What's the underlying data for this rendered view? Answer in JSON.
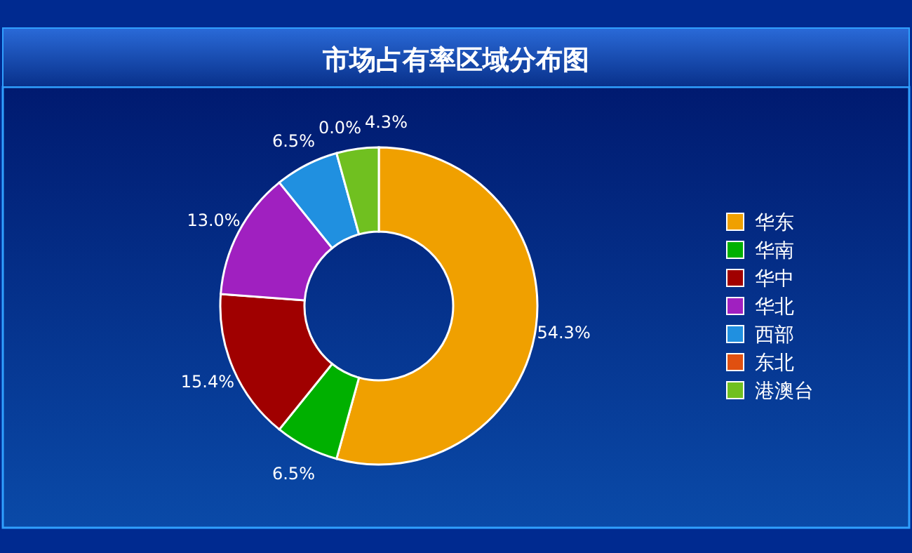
{
  "chart_data": {
    "type": "donut",
    "title": "市场占有率区域分布图",
    "categories": [
      "华东",
      "华南",
      "华中",
      "华北",
      "西部",
      "东北",
      "港澳台"
    ],
    "values": [
      54.3,
      6.5,
      15.4,
      13.0,
      6.5,
      0.0,
      4.3
    ],
    "colors": [
      "#f0a000",
      "#00b000",
      "#a00000",
      "#a020c0",
      "#2090e0",
      "#e05010",
      "#70c020"
    ],
    "value_labels": [
      "54.3%",
      "6.5%",
      "15.4%",
      "13.0%",
      "6.5%",
      "0.0%",
      "4.3%"
    ],
    "legend": "right"
  }
}
